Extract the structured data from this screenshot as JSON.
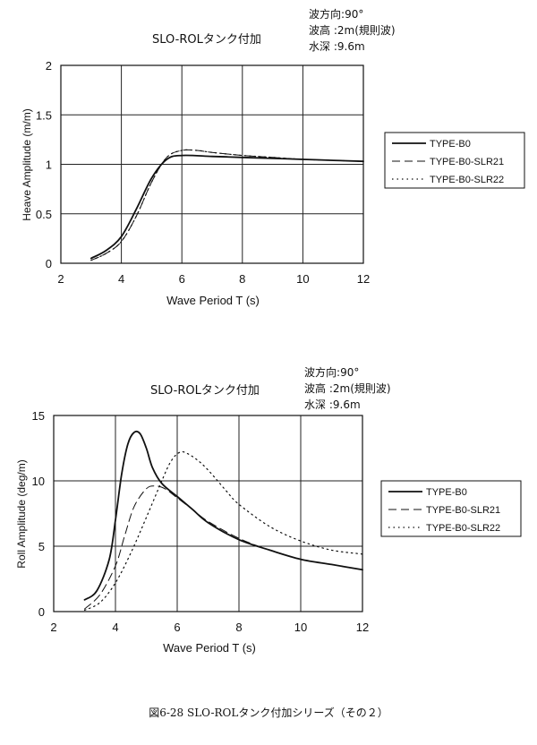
{
  "caption": "図6-28 SLO-ROLタンク付加シリーズ（その２）",
  "chart_data": [
    {
      "type": "line",
      "title": "SLO-ROLタンク付加",
      "conditions": [
        {
          "label": "波方向",
          "sep": ":",
          "value": "90°"
        },
        {
          "label": "波高",
          "sep": "  :",
          "value": "2m(規則波)"
        },
        {
          "label": "水深",
          "sep": "  :",
          "value": "9.6m"
        }
      ],
      "xlabel": "Wave Period  T (s)",
      "ylabel": "Heave Amplitude (m/m)",
      "xlim": [
        2,
        12
      ],
      "ylim": [
        0,
        2
      ],
      "xticks": [
        2,
        4,
        6,
        8,
        10,
        12
      ],
      "yticks": [
        0,
        0.5,
        1,
        1.5,
        2
      ],
      "yticklabels": [
        "0",
        "0.5",
        "1",
        "1.5",
        "2"
      ],
      "grid": true,
      "legend_position": "right",
      "series": [
        {
          "name": "TYPE-B0",
          "style": "solid",
          "x": [
            3,
            3.5,
            4,
            4.5,
            5,
            5.5,
            6,
            7,
            8,
            9,
            10,
            11,
            12
          ],
          "y": [
            0.05,
            0.13,
            0.27,
            0.55,
            0.86,
            1.05,
            1.09,
            1.08,
            1.07,
            1.06,
            1.05,
            1.04,
            1.03
          ]
        },
        {
          "name": "TYPE-B0-SLR21",
          "style": "dashed",
          "x": [
            3,
            3.5,
            4,
            4.5,
            5,
            5.5,
            6,
            6.5,
            7,
            8,
            9,
            10,
            11,
            12
          ],
          "y": [
            0.03,
            0.1,
            0.22,
            0.48,
            0.82,
            1.07,
            1.14,
            1.14,
            1.12,
            1.09,
            1.07,
            1.05,
            1.04,
            1.03
          ]
        },
        {
          "name": "TYPE-B0-SLR22",
          "style": "dotted",
          "x": [
            3,
            3.5,
            4,
            4.5,
            5,
            5.5,
            6,
            6.5,
            7,
            8,
            9,
            10,
            11,
            12
          ],
          "y": [
            0.03,
            0.1,
            0.22,
            0.48,
            0.82,
            1.07,
            1.14,
            1.14,
            1.12,
            1.09,
            1.07,
            1.05,
            1.04,
            1.03
          ]
        }
      ]
    },
    {
      "type": "line",
      "title": "SLO-ROLタンク付加",
      "conditions": [
        {
          "label": "波方向",
          "sep": ":",
          "value": "90°"
        },
        {
          "label": "波高",
          "sep": "  :",
          "value": "2m(規則波)"
        },
        {
          "label": "水深",
          "sep": "  :",
          "value": "9.6m"
        }
      ],
      "xlabel": "Wave Period  T (s)",
      "ylabel": "Roll Amplitude (deg/m)",
      "xlim": [
        2,
        12
      ],
      "ylim": [
        0,
        15
      ],
      "xticks": [
        2,
        4,
        6,
        8,
        10,
        12
      ],
      "yticks": [
        0,
        5,
        10,
        15
      ],
      "yticklabels": [
        "0",
        "5",
        "10",
        "15"
      ],
      "grid": true,
      "legend_position": "right",
      "series": [
        {
          "name": "TYPE-B0",
          "style": "solid",
          "x": [
            3,
            3.4,
            3.8,
            4,
            4.2,
            4.4,
            4.6,
            4.8,
            5,
            5.2,
            5.5,
            6,
            6.5,
            7,
            8,
            9,
            10,
            11,
            12
          ],
          "y": [
            0.9,
            1.6,
            4.0,
            7.0,
            10.5,
            12.8,
            13.7,
            13.6,
            12.5,
            11.0,
            9.8,
            8.8,
            7.8,
            6.8,
            5.5,
            4.7,
            4.0,
            3.6,
            3.2
          ]
        },
        {
          "name": "TYPE-B0-SLR21",
          "style": "dashed",
          "x": [
            3,
            3.5,
            4,
            4.3,
            4.6,
            5,
            5.3,
            5.6,
            6,
            6.5,
            7,
            8,
            9,
            10,
            11,
            12
          ],
          "y": [
            0.2,
            1.3,
            3.5,
            5.8,
            8.0,
            9.4,
            9.6,
            9.4,
            8.7,
            7.8,
            6.9,
            5.6,
            4.7,
            4.0,
            3.6,
            3.2
          ]
        },
        {
          "name": "TYPE-B0-SLR22",
          "style": "dotted",
          "x": [
            3,
            3.5,
            4,
            4.5,
            5,
            5.5,
            5.8,
            6.1,
            6.4,
            6.8,
            7.2,
            7.6,
            8,
            9,
            10,
            11,
            12
          ],
          "y": [
            0.1,
            0.7,
            2.2,
            4.5,
            7.2,
            10.0,
            11.5,
            12.2,
            12.0,
            11.3,
            10.3,
            9.2,
            8.2,
            6.5,
            5.4,
            4.7,
            4.4
          ]
        }
      ]
    }
  ]
}
